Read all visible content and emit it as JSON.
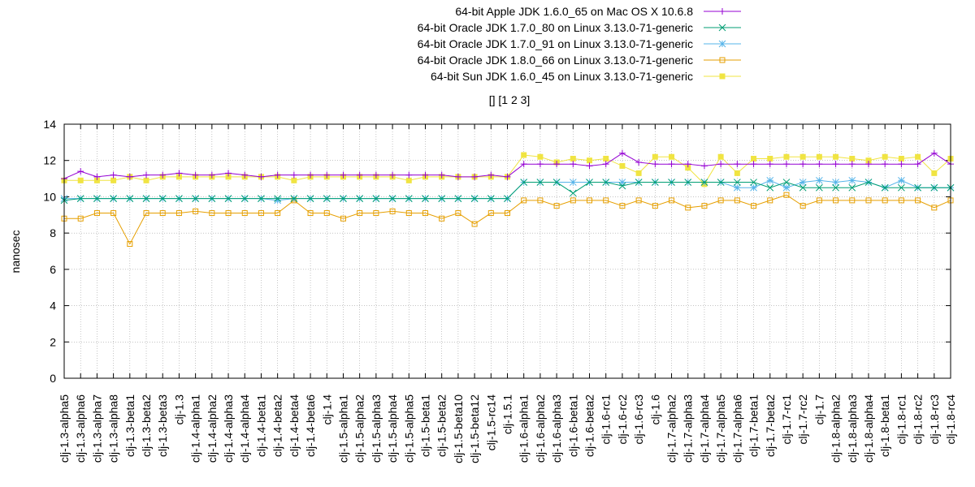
{
  "chart_data": {
    "type": "line",
    "title": "[] [1 2 3]",
    "xlabel": "",
    "ylabel": "nanosec",
    "ylim": [
      0,
      14
    ],
    "yticks": [
      0,
      2,
      4,
      6,
      8,
      10,
      12,
      14
    ],
    "grid": true,
    "legend_position": "top-right",
    "categories": [
      "clj-1.3-alpha5",
      "clj-1.3-alpha6",
      "clj-1.3-alpha7",
      "clj-1.3-alpha8",
      "clj-1.3-beta1",
      "clj-1.3-beta2",
      "clj-1.3-beta3",
      "clj-1.3",
      "clj-1.4-alpha1",
      "clj-1.4-alpha2",
      "clj-1.4-alpha3",
      "clj-1.4-alpha4",
      "clj-1.4-beta1",
      "clj-1.4-beta2",
      "clj-1.4-beta4",
      "clj-1.4-beta6",
      "clj-1.4",
      "clj-1.5-alpha1",
      "clj-1.5-alpha2",
      "clj-1.5-alpha3",
      "clj-1.5-alpha4",
      "clj-1.5-alpha5",
      "clj-1.5-beta1",
      "clj-1.5-beta2",
      "clj-1.5-beta10",
      "clj-1.5-beta12",
      "clj-1.5-rc14",
      "clj-1.5.1",
      "clj-1.6-alpha1",
      "clj-1.6-alpha2",
      "clj-1.6-alpha3",
      "clj-1.6-beta1",
      "clj-1.6-beta2",
      "clj-1.6-rc1",
      "clj-1.6-rc2",
      "clj-1.6-rc3",
      "clj-1.6",
      "clj-1.7-alpha2",
      "clj-1.7-alpha3",
      "clj-1.7-alpha4",
      "clj-1.7-alpha5",
      "clj-1.7-alpha6",
      "clj-1.7-beta1",
      "clj-1.7-beta2",
      "clj-1.7-rc1",
      "clj-1.7-rc2",
      "clj-1.7",
      "clj-1.8-alpha2",
      "clj-1.8-alpha3",
      "clj-1.8-alpha4",
      "clj-1.8-beta1",
      "clj-1.8-rc1",
      "clj-1.8-rc2",
      "clj-1.8-rc3",
      "clj-1.8-rc4"
    ],
    "series": [
      {
        "name": "64-bit Apple JDK 1.6.0_65 on Mac OS X 10.6.8",
        "color": "#9400d3",
        "marker": "plus",
        "values": [
          11.0,
          11.4,
          11.1,
          11.2,
          11.1,
          11.2,
          11.2,
          11.3,
          11.2,
          11.2,
          11.3,
          11.2,
          11.1,
          11.2,
          11.2,
          11.2,
          11.2,
          11.2,
          11.2,
          11.2,
          11.2,
          11.2,
          11.2,
          11.2,
          11.1,
          11.1,
          11.2,
          11.1,
          11.8,
          11.8,
          11.8,
          11.8,
          11.7,
          11.8,
          12.4,
          11.9,
          11.8,
          11.8,
          11.8,
          11.7,
          11.8,
          11.8,
          11.8,
          11.8,
          11.8,
          11.8,
          11.8,
          11.8,
          11.8,
          11.8,
          11.8,
          11.8,
          11.8,
          12.4,
          11.8
        ]
      },
      {
        "name": "64-bit Oracle JDK 1.7.0_80 on Linux 3.13.0-71-generic",
        "color": "#009e73",
        "marker": "cross",
        "values": [
          9.8,
          9.9,
          9.9,
          9.9,
          9.9,
          9.9,
          9.9,
          9.9,
          9.9,
          9.9,
          9.9,
          9.9,
          9.9,
          9.9,
          9.9,
          9.9,
          9.9,
          9.9,
          9.9,
          9.9,
          9.9,
          9.9,
          9.9,
          9.9,
          9.9,
          9.9,
          9.9,
          9.9,
          10.8,
          10.8,
          10.8,
          10.2,
          10.8,
          10.8,
          10.6,
          10.8,
          10.8,
          10.8,
          10.8,
          10.8,
          10.8,
          10.8,
          10.8,
          10.5,
          10.8,
          10.5,
          10.5,
          10.5,
          10.5,
          10.8,
          10.5,
          10.5,
          10.5,
          10.5,
          10.5
        ]
      },
      {
        "name": "64-bit Oracle JDK 1.7.0_91 on Linux 3.13.0-71-generic",
        "color": "#56b4e9",
        "marker": "star",
        "values": [
          9.9,
          9.9,
          9.9,
          9.9,
          9.9,
          9.9,
          9.9,
          9.9,
          9.9,
          9.9,
          9.9,
          9.9,
          9.9,
          9.8,
          9.9,
          9.9,
          9.9,
          9.9,
          9.9,
          9.9,
          9.9,
          9.9,
          9.9,
          9.9,
          9.9,
          9.9,
          9.9,
          9.9,
          10.8,
          10.8,
          10.8,
          10.8,
          10.8,
          10.8,
          10.8,
          10.8,
          10.8,
          10.8,
          10.8,
          10.8,
          10.8,
          10.5,
          10.5,
          10.9,
          10.5,
          10.8,
          10.9,
          10.8,
          10.9,
          10.8,
          10.5,
          10.9,
          10.5,
          10.5,
          10.5
        ]
      },
      {
        "name": "64-bit Oracle JDK 1.8.0_66 on Linux 3.13.0-71-generic",
        "color": "#e69f00",
        "marker": "square-open",
        "values": [
          8.8,
          8.8,
          9.1,
          9.1,
          7.4,
          9.1,
          9.1,
          9.1,
          9.2,
          9.1,
          9.1,
          9.1,
          9.1,
          9.1,
          9.8,
          9.1,
          9.1,
          8.8,
          9.1,
          9.1,
          9.2,
          9.1,
          9.1,
          8.8,
          9.1,
          8.5,
          9.1,
          9.1,
          9.8,
          9.8,
          9.5,
          9.8,
          9.8,
          9.8,
          9.5,
          9.8,
          9.5,
          9.8,
          9.4,
          9.5,
          9.8,
          9.8,
          9.5,
          9.8,
          10.1,
          9.5,
          9.8,
          9.8,
          9.8,
          9.8,
          9.8,
          9.8,
          9.8,
          9.4,
          9.8
        ]
      },
      {
        "name": "64-bit Sun JDK 1.6.0_45 on Linux 3.13.0-71-generic",
        "color": "#f0e442",
        "marker": "square-filled",
        "values": [
          10.9,
          10.9,
          10.9,
          10.9,
          11.1,
          10.9,
          11.1,
          11.1,
          11.1,
          11.1,
          11.1,
          11.1,
          11.1,
          11.1,
          10.9,
          11.1,
          11.1,
          11.1,
          11.1,
          11.1,
          11.1,
          10.9,
          11.1,
          11.1,
          11.1,
          11.1,
          11.1,
          11.1,
          12.3,
          12.2,
          11.9,
          12.1,
          12.0,
          12.1,
          11.7,
          11.3,
          12.2,
          12.2,
          11.6,
          10.7,
          12.2,
          11.3,
          12.1,
          12.1,
          12.2,
          12.2,
          12.2,
          12.2,
          12.1,
          12.0,
          12.2,
          12.1,
          12.2,
          11.3,
          12.1
        ]
      }
    ]
  }
}
